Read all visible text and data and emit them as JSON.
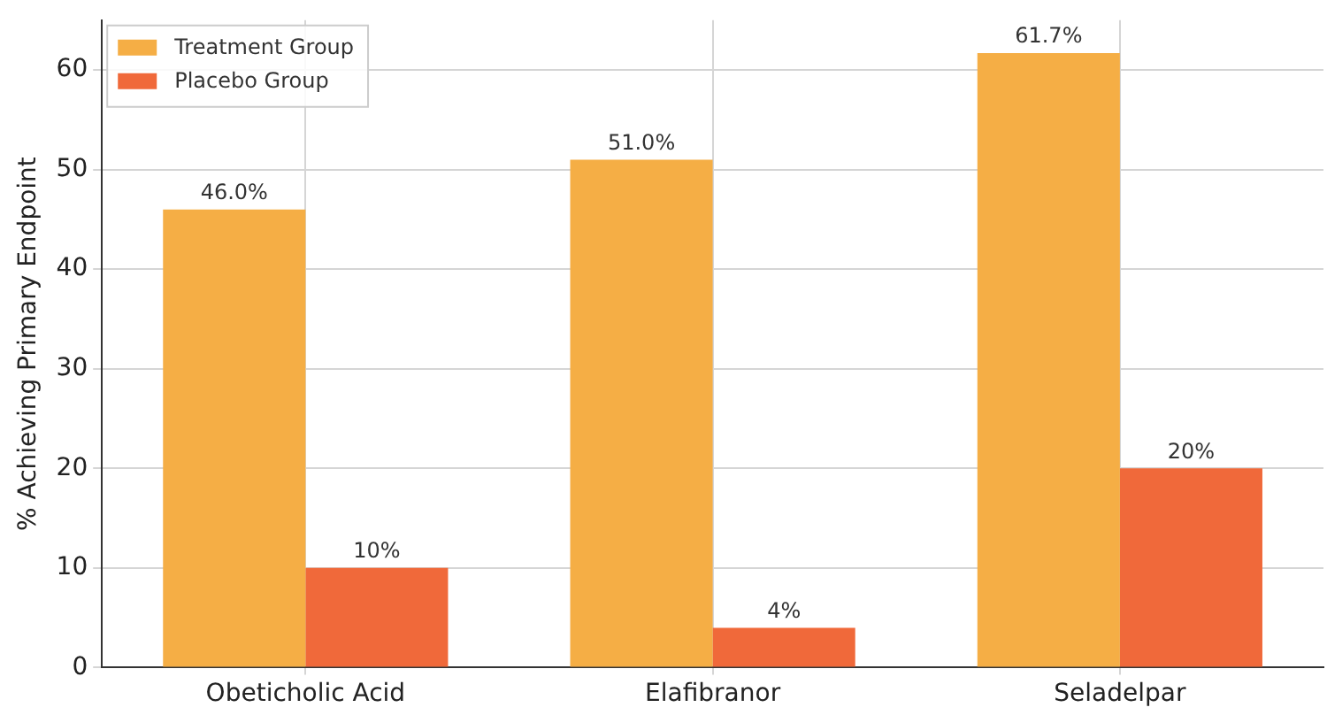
{
  "chart_data": {
    "type": "bar",
    "ylabel": "% Achieving Primary Endpoint",
    "categories": [
      "Obeticholic Acid",
      "Elafibranor",
      "Seladelpar"
    ],
    "series": [
      {
        "name": "Treatment Group",
        "color": "#f5ae45",
        "values": [
          46.0,
          51.0,
          61.7
        ],
        "value_labels": [
          "46.0%",
          "51.0%",
          "61.7%"
        ]
      },
      {
        "name": "Placebo Group",
        "color": "#f0693a",
        "values": [
          10,
          4,
          20
        ],
        "value_labels": [
          "10%",
          "4%",
          "20%"
        ]
      }
    ],
    "ylim": [
      0,
      65
    ],
    "yticks": [
      0,
      10,
      20,
      30,
      40,
      50,
      60
    ],
    "grid": true,
    "legend": "top left"
  }
}
